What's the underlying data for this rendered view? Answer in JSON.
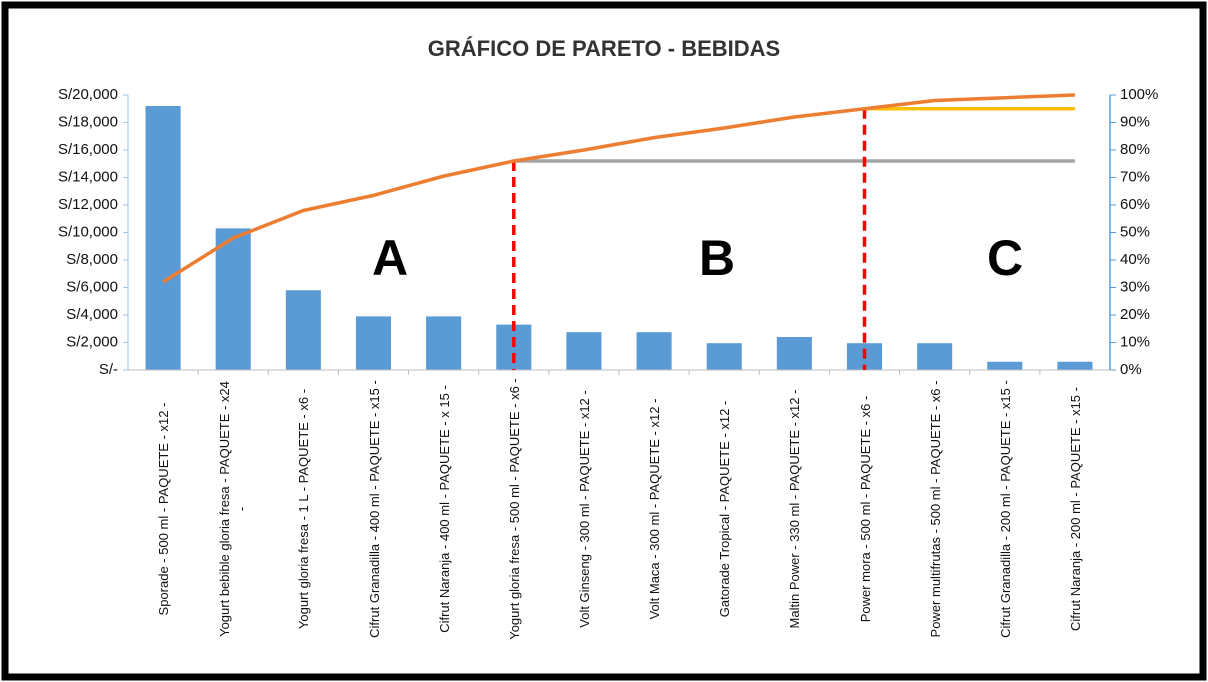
{
  "chart_data": {
    "type": "pareto",
    "title": "GRÁFICO DE PARETO - BEBIDAS",
    "categories": [
      "Sporade - 500 ml - PAQUETE - x12 -",
      "Yogurt bebible gloria fresa - PAQUETE - x24 -",
      "Yogurt gloria fresa - 1 L - PAQUETE - x6 -",
      "Cifrut Granadilla - 400 ml - PAQUETE - x15 -",
      "Cifrut Naranja - 400 ml - PAQUETE - x 15 -",
      "Yogurt gloria fresa - 500 ml - PAQUETE - x6 -",
      "Volt Ginseng - 300 ml - PAQUETE - x12 -",
      "Volt Maca - 300 ml - PAQUETE - x12 -",
      "Gatorade Tropical - PAQUETE - x12 -",
      "Maltin Power - 330 ml - PAQUETE - x12 -",
      "Power mora - 500 ml - PAQUETE - x6 -",
      "Power multifrutas - 500 ml - PAQUETE - x6 -",
      "Cifrut Granadilla - 200 ml - PAQUETE - x15 -",
      "Cifrut Naranja - 200 ml - PAQUETE - x15 -"
    ],
    "series": [
      {
        "type": "bar",
        "color": "#5b9bd5",
        "values": [
          19200,
          10300,
          5800,
          3900,
          3900,
          3300,
          2750,
          2750,
          1950,
          2400,
          1950,
          1950,
          600,
          600
        ]
      },
      {
        "type": "line",
        "axis": "y2",
        "color": "#ed7d31",
        "values": [
          32,
          48,
          58,
          63.5,
          70.5,
          76,
          80,
          84.5,
          88,
          92,
          95,
          98,
          99,
          100
        ]
      }
    ],
    "ylim": [
      0,
      20000
    ],
    "yticks": [
      {
        "value": 0,
        "label": "S/-"
      },
      {
        "value": 2000,
        "label": "S/2,000"
      },
      {
        "value": 4000,
        "label": "S/4,000"
      },
      {
        "value": 6000,
        "label": "S/6,000"
      },
      {
        "value": 8000,
        "label": "S/8,000"
      },
      {
        "value": 10000,
        "label": "S/10,000"
      },
      {
        "value": 12000,
        "label": "S/12,000"
      },
      {
        "value": 14000,
        "label": "S/14,000"
      },
      {
        "value": 16000,
        "label": "S/16,000"
      },
      {
        "value": 18000,
        "label": "S/18,000"
      },
      {
        "value": 20000,
        "label": "S/20,000"
      }
    ],
    "y2lim": [
      0,
      100
    ],
    "y2ticks": [
      {
        "value": 0,
        "label": "0%"
      },
      {
        "value": 10,
        "label": "10%"
      },
      {
        "value": 20,
        "label": "20%"
      },
      {
        "value": 30,
        "label": "30%"
      },
      {
        "value": 40,
        "label": "40%"
      },
      {
        "value": 50,
        "label": "50%"
      },
      {
        "value": 60,
        "label": "60%"
      },
      {
        "value": 70,
        "label": "70%"
      },
      {
        "value": 80,
        "label": "80%"
      },
      {
        "value": 90,
        "label": "90%"
      },
      {
        "value": 100,
        "label": "100%"
      }
    ],
    "zones": [
      {
        "label": "A",
        "last": "Yogurt gloria fresa - 500 ml - PAQUETE - x6 -",
        "color": "#a5a5a5"
      },
      {
        "label": "B",
        "last": "Power mora - 500 ml - PAQUETE - x6 -",
        "color": "#ffc000"
      },
      {
        "label": "C"
      }
    ],
    "divider_color": "#ff0000"
  }
}
